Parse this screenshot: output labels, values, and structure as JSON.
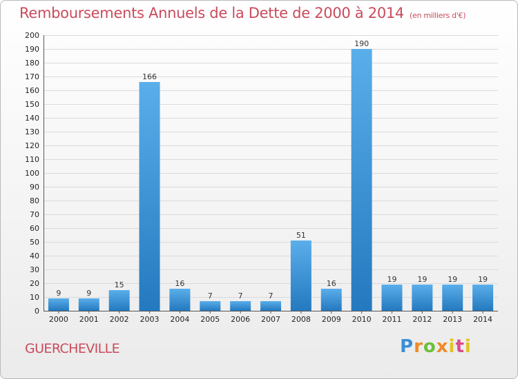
{
  "header": {
    "title": "Remboursements Annuels de la Dette de 2000 à 2014",
    "unit": "(en milliers d'€)"
  },
  "commune": "GUERCHEVILLE",
  "logo": {
    "text": "Proxiti"
  },
  "colors": {
    "bar_top": "#5aaeea",
    "bar_bottom": "#2479bf",
    "title": "#c94a5c"
  },
  "chart_data": {
    "type": "bar",
    "categories": [
      "2000",
      "2001",
      "2002",
      "2003",
      "2004",
      "2005",
      "2006",
      "2007",
      "2008",
      "2009",
      "2010",
      "2011",
      "2012",
      "2013",
      "2014"
    ],
    "values": [
      9,
      9,
      15,
      166,
      16,
      7,
      7,
      7,
      51,
      16,
      190,
      19,
      19,
      19,
      19
    ],
    "ylim": [
      0,
      200
    ],
    "yticks": [
      0,
      10,
      20,
      30,
      40,
      50,
      60,
      70,
      80,
      90,
      100,
      110,
      120,
      130,
      140,
      150,
      160,
      170,
      180,
      190,
      200
    ],
    "grid": true,
    "title": "Remboursements Annuels de la Dette de 2000 à 2014",
    "xlabel": "",
    "ylabel": ""
  }
}
